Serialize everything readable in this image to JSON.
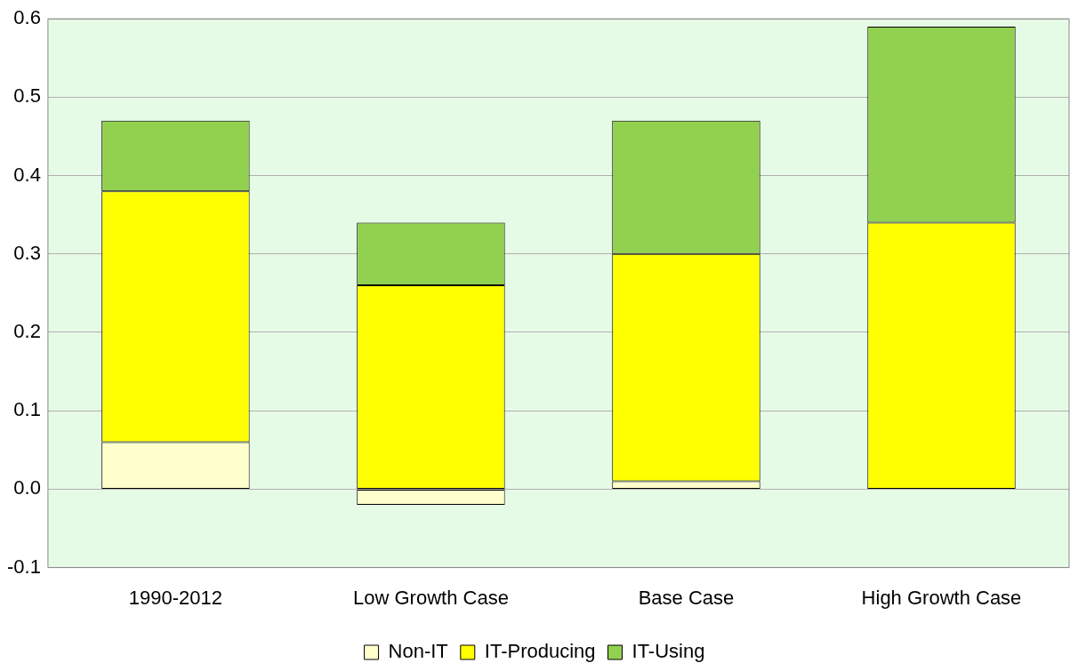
{
  "chart_data": {
    "type": "bar",
    "stacked": true,
    "categories": [
      "1990-2012",
      "Low Growth Case",
      "Base Case",
      "High Growth Case"
    ],
    "series": [
      {
        "name": "Non-IT",
        "color": "#ffffcc",
        "values": [
          0.06,
          -0.02,
          0.01,
          0
        ]
      },
      {
        "name": "IT-Producing",
        "color": "#ffff00",
        "values": [
          0.32,
          0.26,
          0.29,
          0.34
        ]
      },
      {
        "name": "IT-Using",
        "color": "#92d050",
        "values": [
          0.09,
          0.08,
          0.17,
          0.25
        ]
      }
    ],
    "ylim": [
      -0.1,
      0.6
    ],
    "yticks": [
      -0.1,
      {
        "value": 0,
        "label": "0.0"
      },
      0.1,
      0.2,
      0.3,
      0.4,
      0.5,
      0.6
    ],
    "grid": "y",
    "legend": "bottom"
  }
}
